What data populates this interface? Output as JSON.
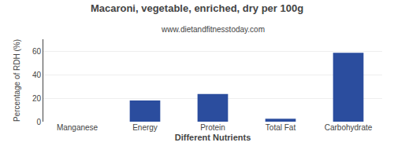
{
  "chart_data": {
    "type": "bar",
    "title": "Macaroni, vegetable, enriched, dry per 100g",
    "subtitle": "www.dietandfitnesstoday.com",
    "xlabel": "Different Nutrients",
    "ylabel": "Percentage of RDH (%)",
    "categories": [
      "Manganese",
      "Energy",
      "Protein",
      "Total Fat",
      "Carbohydrate"
    ],
    "values": [
      0.0,
      18.0,
      23.5,
      2.5,
      58.5
    ],
    "color": "#2b4d9e",
    "ylim": [
      0,
      70
    ],
    "yticks": [
      0,
      20,
      40,
      60
    ],
    "grid": true
  }
}
